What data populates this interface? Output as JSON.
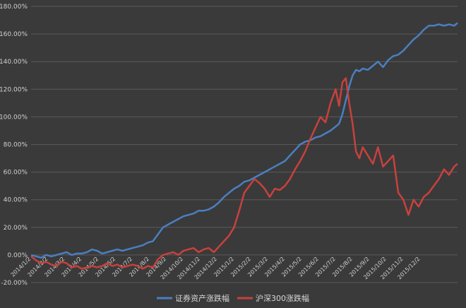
{
  "chart_data": {
    "type": "line",
    "title": "",
    "xlabel": "",
    "ylabel": "",
    "ylim": [
      -20,
      180
    ],
    "y_ticks": [
      "-20.00%",
      "0.00%",
      "20.00%",
      "40.00%",
      "60.00%",
      "80.00%",
      "100.00%",
      "120.00%",
      "140.00%",
      "160.00%",
      "180.00%"
    ],
    "x_ticks": [
      "2014/1/2",
      "2014/2/2",
      "2014/3/2",
      "2014/4/2",
      "2014/5/2",
      "2014/6/2",
      "2014/7/2",
      "2014/8/2",
      "2014/9/2",
      "2014/10/2",
      "2014/11/2",
      "2014/12/2",
      "2015/1/2",
      "2015/2/2",
      "2015/3/2",
      "2015/4/2",
      "2015/5/2",
      "2015/6/2",
      "2015/7/2",
      "2015/8/2",
      "2015/9/2",
      "2015/10/2",
      "2015/11/2",
      "2015/12/2"
    ],
    "grid": true,
    "legend_position": "bottom",
    "x_unit": "month",
    "series": [
      {
        "name": "证券资产涨跌幅",
        "color": "#4a7fc1",
        "points": [
          [
            0,
            0
          ],
          [
            0.3,
            -1
          ],
          [
            0.6,
            -2
          ],
          [
            0.9,
            0
          ],
          [
            1.2,
            -1
          ],
          [
            1.5,
            0
          ],
          [
            1.8,
            1
          ],
          [
            2.1,
            2
          ],
          [
            2.4,
            0
          ],
          [
            2.7,
            1
          ],
          [
            3.0,
            1
          ],
          [
            3.3,
            2
          ],
          [
            3.6,
            4
          ],
          [
            3.9,
            3
          ],
          [
            4.2,
            1
          ],
          [
            4.5,
            2
          ],
          [
            4.8,
            3
          ],
          [
            5.1,
            4
          ],
          [
            5.4,
            3
          ],
          [
            5.7,
            4
          ],
          [
            6.0,
            5
          ],
          [
            6.3,
            6
          ],
          [
            6.6,
            7
          ],
          [
            6.9,
            9
          ],
          [
            7.2,
            10
          ],
          [
            7.5,
            15
          ],
          [
            7.8,
            20
          ],
          [
            8.1,
            22
          ],
          [
            8.4,
            24
          ],
          [
            8.7,
            26
          ],
          [
            9.0,
            28
          ],
          [
            9.3,
            29
          ],
          [
            9.6,
            30
          ],
          [
            9.9,
            32
          ],
          [
            10.2,
            32
          ],
          [
            10.5,
            33
          ],
          [
            10.8,
            35
          ],
          [
            11.1,
            38
          ],
          [
            11.4,
            42
          ],
          [
            11.7,
            45
          ],
          [
            12.0,
            48
          ],
          [
            12.3,
            50
          ],
          [
            12.6,
            53
          ],
          [
            12.9,
            54
          ],
          [
            13.2,
            56
          ],
          [
            13.5,
            58
          ],
          [
            13.8,
            60
          ],
          [
            14.1,
            62
          ],
          [
            14.4,
            64
          ],
          [
            14.7,
            66
          ],
          [
            15.0,
            68
          ],
          [
            15.3,
            72
          ],
          [
            15.6,
            76
          ],
          [
            15.9,
            80
          ],
          [
            16.2,
            82
          ],
          [
            16.5,
            83
          ],
          [
            16.8,
            85
          ],
          [
            17.1,
            86
          ],
          [
            17.4,
            88
          ],
          [
            17.7,
            90
          ],
          [
            18.0,
            93
          ],
          [
            18.2,
            95
          ],
          [
            18.4,
            102
          ],
          [
            18.6,
            112
          ],
          [
            18.8,
            122
          ],
          [
            19.0,
            130
          ],
          [
            19.2,
            134
          ],
          [
            19.4,
            133
          ],
          [
            19.6,
            135
          ],
          [
            19.9,
            134
          ],
          [
            20.2,
            137
          ],
          [
            20.5,
            140
          ],
          [
            20.8,
            136
          ],
          [
            21.1,
            141
          ],
          [
            21.4,
            144
          ],
          [
            21.7,
            145
          ],
          [
            22.0,
            148
          ],
          [
            22.3,
            152
          ],
          [
            22.6,
            156
          ],
          [
            22.9,
            159
          ],
          [
            23.2,
            163
          ],
          [
            23.5,
            166
          ],
          [
            23.8,
            166
          ],
          [
            24.1,
            167
          ],
          [
            24.4,
            166
          ],
          [
            24.7,
            167
          ],
          [
            25.0,
            166
          ],
          [
            25.2,
            168
          ]
        ]
      },
      {
        "name": "沪深300涨跌幅",
        "color": "#c8413d",
        "points": [
          [
            0,
            -1
          ],
          [
            0.3,
            -4
          ],
          [
            0.6,
            -6
          ],
          [
            0.9,
            -5
          ],
          [
            1.2,
            -7
          ],
          [
            1.5,
            -8
          ],
          [
            1.8,
            -5
          ],
          [
            2.1,
            -6
          ],
          [
            2.4,
            -9
          ],
          [
            2.7,
            -8
          ],
          [
            3.0,
            -10
          ],
          [
            3.3,
            -9
          ],
          [
            3.6,
            -8
          ],
          [
            3.9,
            -9
          ],
          [
            4.2,
            -8
          ],
          [
            4.5,
            -6
          ],
          [
            4.8,
            -8
          ],
          [
            5.1,
            -7
          ],
          [
            5.4,
            -9
          ],
          [
            5.7,
            -8
          ],
          [
            6.0,
            -7
          ],
          [
            6.3,
            -8
          ],
          [
            6.6,
            -10
          ],
          [
            6.9,
            -8
          ],
          [
            7.2,
            -9
          ],
          [
            7.5,
            -3
          ],
          [
            7.8,
            0
          ],
          [
            8.1,
            1
          ],
          [
            8.4,
            2
          ],
          [
            8.7,
            0
          ],
          [
            9.0,
            3
          ],
          [
            9.3,
            4
          ],
          [
            9.6,
            5
          ],
          [
            9.9,
            2
          ],
          [
            10.2,
            4
          ],
          [
            10.5,
            5
          ],
          [
            10.8,
            2
          ],
          [
            11.1,
            6
          ],
          [
            11.4,
            10
          ],
          [
            11.7,
            14
          ],
          [
            12.0,
            20
          ],
          [
            12.3,
            32
          ],
          [
            12.6,
            45
          ],
          [
            12.9,
            50
          ],
          [
            13.2,
            55
          ],
          [
            13.5,
            52
          ],
          [
            13.8,
            48
          ],
          [
            14.1,
            42
          ],
          [
            14.4,
            48
          ],
          [
            14.7,
            47
          ],
          [
            15.0,
            50
          ],
          [
            15.3,
            55
          ],
          [
            15.6,
            62
          ],
          [
            15.9,
            68
          ],
          [
            16.2,
            75
          ],
          [
            16.5,
            84
          ],
          [
            16.8,
            92
          ],
          [
            17.1,
            100
          ],
          [
            17.4,
            96
          ],
          [
            17.7,
            110
          ],
          [
            18.0,
            120
          ],
          [
            18.2,
            108
          ],
          [
            18.4,
            125
          ],
          [
            18.6,
            128
          ],
          [
            18.8,
            110
          ],
          [
            19.0,
            95
          ],
          [
            19.2,
            75
          ],
          [
            19.4,
            70
          ],
          [
            19.6,
            78
          ],
          [
            19.9,
            72
          ],
          [
            20.2,
            66
          ],
          [
            20.5,
            78
          ],
          [
            20.8,
            64
          ],
          [
            21.1,
            68
          ],
          [
            21.4,
            72
          ],
          [
            21.7,
            45
          ],
          [
            22.0,
            40
          ],
          [
            22.3,
            29
          ],
          [
            22.6,
            40
          ],
          [
            22.9,
            35
          ],
          [
            23.2,
            42
          ],
          [
            23.5,
            45
          ],
          [
            23.8,
            50
          ],
          [
            24.1,
            55
          ],
          [
            24.4,
            62
          ],
          [
            24.7,
            58
          ],
          [
            25.0,
            64
          ],
          [
            25.2,
            66
          ]
        ]
      }
    ]
  }
}
